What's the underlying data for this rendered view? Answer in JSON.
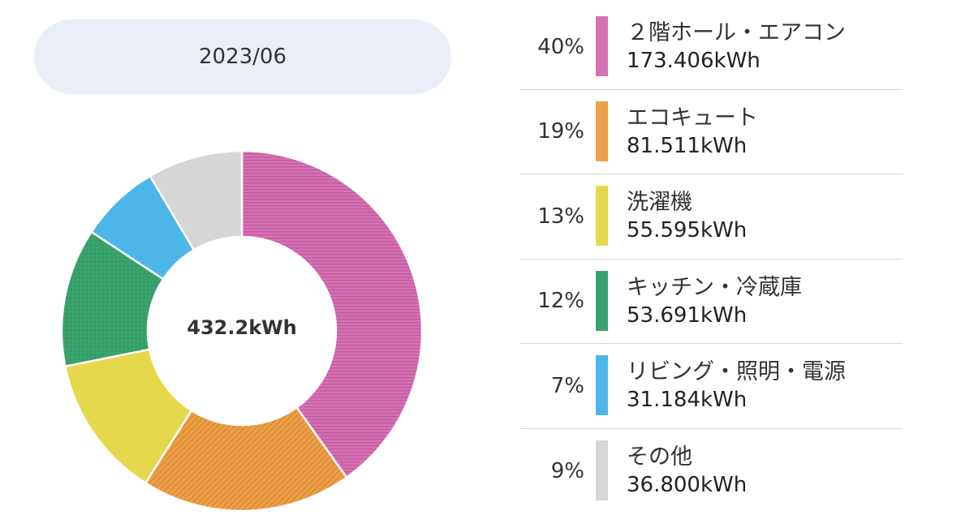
{
  "period": "2023/06",
  "chart_data": {
    "type": "pie",
    "total_label": "432.2kWh",
    "slices": [
      {
        "label": "２階ホール・エアコン",
        "percent": "40%",
        "value_label": "173.406kWh",
        "value": 173.406,
        "color": "#d671b4",
        "hatch": "stripes"
      },
      {
        "label": "エコキュート",
        "percent": "19%",
        "value_label": "81.511kWh",
        "value": 81.511,
        "color": "#eda04a",
        "hatch": "diag"
      },
      {
        "label": "洗濯機",
        "percent": "13%",
        "value_label": "55.595kWh",
        "value": 55.595,
        "color": "#e6d84d",
        "hatch": "none"
      },
      {
        "label": "キッチン・冷蔵庫",
        "percent": "12%",
        "value_label": "53.691kWh",
        "value": 53.691,
        "color": "#3aa36c",
        "hatch": "dots"
      },
      {
        "label": "リビング・照明・電源",
        "percent": "7%",
        "value_label": "31.184kWh",
        "value": 31.184,
        "color": "#4cb6e8",
        "hatch": "none"
      },
      {
        "label": "その他",
        "percent": "9%",
        "value_label": "36.800kWh",
        "value": 36.8,
        "color": "#d6d6d6",
        "hatch": "none"
      }
    ]
  }
}
